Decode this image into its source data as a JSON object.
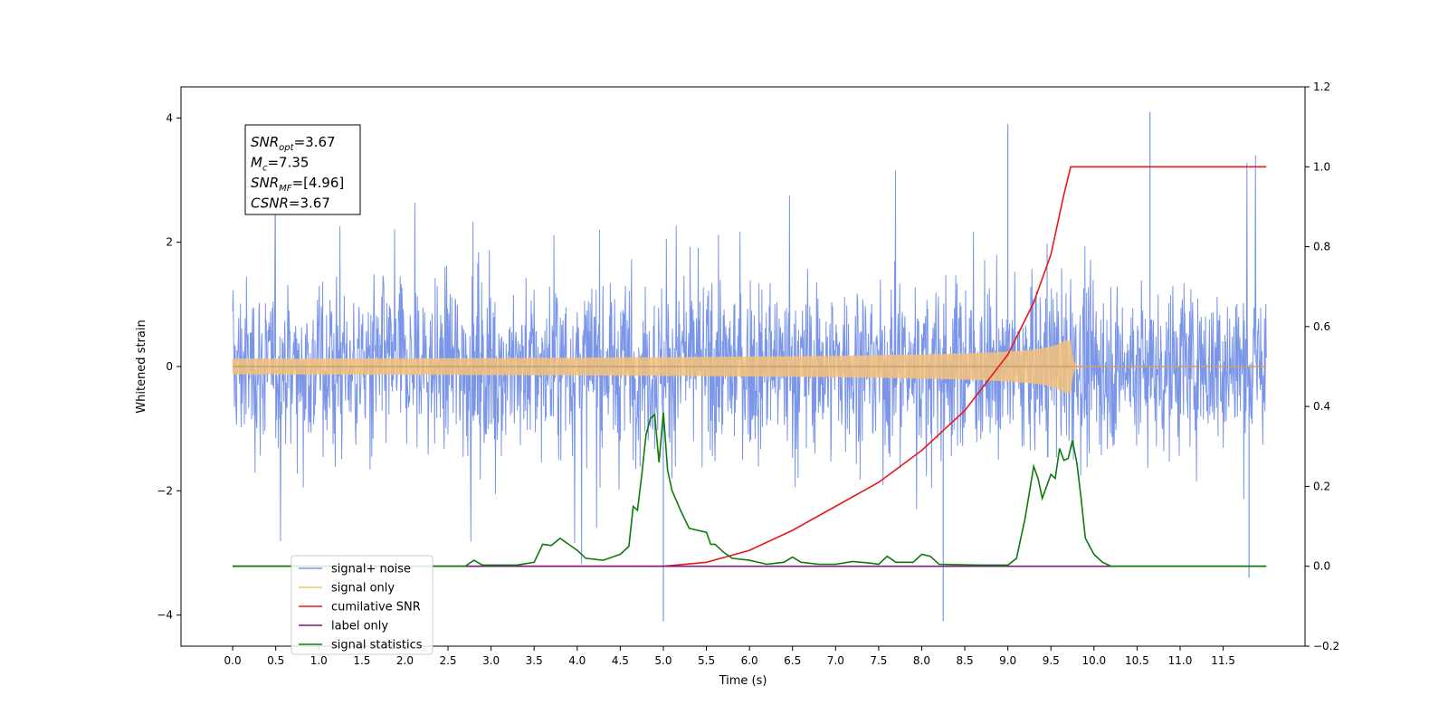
{
  "chart_data": {
    "type": "line",
    "xlabel": "Time (s)",
    "ylabel_left": "Whitened strain",
    "ylabel_right": "",
    "xlim": [
      -0.6,
      12.45
    ],
    "ylim_left": [
      -4.5,
      4.5
    ],
    "ylim_right": [
      -0.2,
      1.2
    ],
    "x_ticks": [
      "0.0",
      "0.5",
      "1.0",
      "1.5",
      "2.0",
      "2.5",
      "3.0",
      "3.5",
      "4.0",
      "4.5",
      "5.0",
      "5.5",
      "6.0",
      "6.5",
      "7.0",
      "7.5",
      "8.0",
      "8.5",
      "9.0",
      "9.5",
      "10.0",
      "10.5",
      "11.0",
      "11.5"
    ],
    "y_ticks_left": [
      "4",
      "2",
      "0",
      "−2",
      "−4"
    ],
    "y_ticks_right": [
      "1.2",
      "1.0",
      "0.8",
      "0.6",
      "0.4",
      "0.2",
      "0.0",
      "−0.2"
    ],
    "grid": false,
    "legend_position": "lower-left",
    "annotation_box": {
      "lines": [
        {
          "base": "SNR",
          "sub": "opt",
          "rest": "=3.67"
        },
        {
          "base": "M",
          "sub": "c",
          "rest": "=7.35"
        },
        {
          "base": "SNR",
          "sub": "MF",
          "rest": "=[4.96]"
        },
        {
          "base": "CSNR",
          "sub": "",
          "rest": "=3.67"
        }
      ]
    },
    "series": [
      {
        "name": "signal+ noise",
        "axis": "left",
        "color": "#7b96e8",
        "kind": "noise",
        "x_range": [
          0.0,
          12.0
        ],
        "amplitude_envelope": [
          -3.0,
          3.0
        ],
        "spike_peaks": [
          {
            "x": 10.65,
            "y": 4.1
          },
          {
            "x": 9.0,
            "y": 3.9
          },
          {
            "x": 5.0,
            "y": -4.1
          },
          {
            "x": 8.25,
            "y": -4.1
          },
          {
            "x": 11.8,
            "y": -3.4
          }
        ]
      },
      {
        "name": "signal only",
        "axis": "left",
        "color": "#f5c27a",
        "kind": "chirp",
        "x_range": [
          0.0,
          12.0
        ],
        "merger_time": 9.73,
        "peak_amplitude": 0.42
      },
      {
        "name": "cumilative SNR",
        "axis": "right",
        "color": "#e8191c",
        "points": [
          [
            0.0,
            0.0
          ],
          [
            5.0,
            0.0
          ],
          [
            5.5,
            0.01
          ],
          [
            6.0,
            0.04
          ],
          [
            6.5,
            0.09
          ],
          [
            7.0,
            0.15
          ],
          [
            7.5,
            0.21
          ],
          [
            8.0,
            0.29
          ],
          [
            8.5,
            0.39
          ],
          [
            9.0,
            0.53
          ],
          [
            9.3,
            0.66
          ],
          [
            9.5,
            0.78
          ],
          [
            9.65,
            0.93
          ],
          [
            9.73,
            1.0
          ],
          [
            12.0,
            1.0
          ]
        ]
      },
      {
        "name": "label only",
        "axis": "right",
        "color": "#7a1a7a",
        "points": [
          [
            0.0,
            0.0
          ],
          [
            12.0,
            0.0
          ]
        ]
      },
      {
        "name": "signal statistics",
        "axis": "right",
        "color": "#0d7a0d",
        "points": [
          [
            0.0,
            0.0
          ],
          [
            2.7,
            0.0
          ],
          [
            2.8,
            0.015
          ],
          [
            2.9,
            0.003
          ],
          [
            3.3,
            0.003
          ],
          [
            3.5,
            0.01
          ],
          [
            3.6,
            0.055
          ],
          [
            3.7,
            0.052
          ],
          [
            3.8,
            0.07
          ],
          [
            3.9,
            0.055
          ],
          [
            4.0,
            0.04
          ],
          [
            4.1,
            0.02
          ],
          [
            4.3,
            0.015
          ],
          [
            4.5,
            0.03
          ],
          [
            4.6,
            0.05
          ],
          [
            4.65,
            0.15
          ],
          [
            4.7,
            0.14
          ],
          [
            4.75,
            0.23
          ],
          [
            4.8,
            0.33
          ],
          [
            4.85,
            0.37
          ],
          [
            4.9,
            0.38
          ],
          [
            4.95,
            0.26
          ],
          [
            5.0,
            0.385
          ],
          [
            5.05,
            0.24
          ],
          [
            5.1,
            0.19
          ],
          [
            5.2,
            0.14
          ],
          [
            5.3,
            0.095
          ],
          [
            5.4,
            0.09
          ],
          [
            5.5,
            0.085
          ],
          [
            5.55,
            0.055
          ],
          [
            5.6,
            0.055
          ],
          [
            5.7,
            0.035
          ],
          [
            5.8,
            0.02
          ],
          [
            6.0,
            0.015
          ],
          [
            6.2,
            0.005
          ],
          [
            6.4,
            0.01
          ],
          [
            6.5,
            0.023
          ],
          [
            6.6,
            0.01
          ],
          [
            6.8,
            0.005
          ],
          [
            7.0,
            0.005
          ],
          [
            7.2,
            0.012
          ],
          [
            7.4,
            0.008
          ],
          [
            7.5,
            0.005
          ],
          [
            7.6,
            0.025
          ],
          [
            7.7,
            0.01
          ],
          [
            7.9,
            0.01
          ],
          [
            8.0,
            0.03
          ],
          [
            8.1,
            0.025
          ],
          [
            8.2,
            0.005
          ],
          [
            8.4,
            0.004
          ],
          [
            8.7,
            0.003
          ],
          [
            9.0,
            0.003
          ],
          [
            9.1,
            0.02
          ],
          [
            9.2,
            0.12
          ],
          [
            9.3,
            0.25
          ],
          [
            9.35,
            0.22
          ],
          [
            9.4,
            0.17
          ],
          [
            9.5,
            0.23
          ],
          [
            9.55,
            0.22
          ],
          [
            9.6,
            0.295
          ],
          [
            9.65,
            0.265
          ],
          [
            9.7,
            0.27
          ],
          [
            9.75,
            0.315
          ],
          [
            9.8,
            0.26
          ],
          [
            9.85,
            0.17
          ],
          [
            9.9,
            0.07
          ],
          [
            10.0,
            0.03
          ],
          [
            10.1,
            0.01
          ],
          [
            10.2,
            0.0
          ],
          [
            12.0,
            0.0
          ]
        ]
      }
    ]
  }
}
